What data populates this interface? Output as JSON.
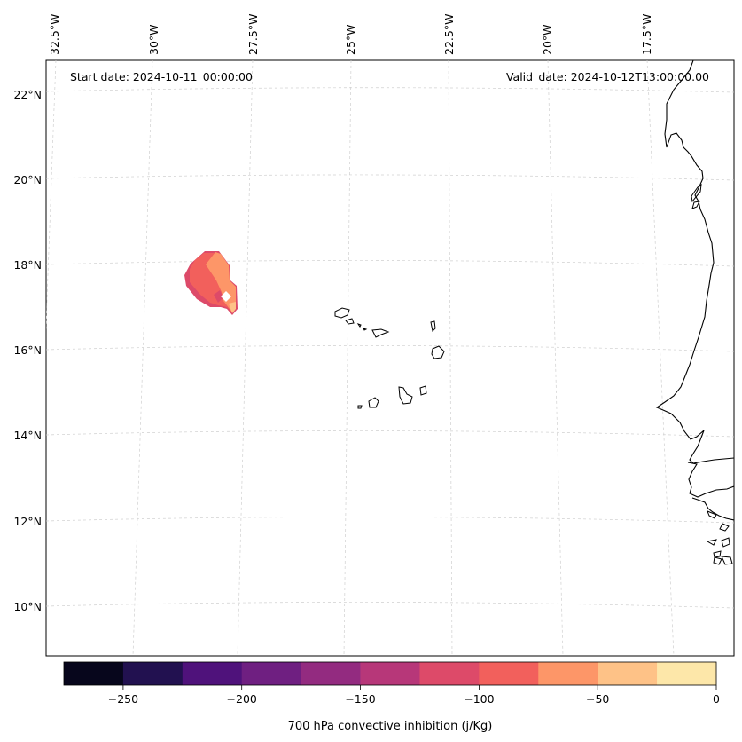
{
  "info": {
    "start_date": "Start date: 2024-10-11_00:00:00",
    "valid_date": "Valid_date: 2024-10-12T13:00:00.00"
  },
  "lon_labels": [
    "32.5°W",
    "30°W",
    "27.5°W",
    "25°W",
    "22.5°W",
    "20°W",
    "17.5°W"
  ],
  "lat_labels": [
    "22°N",
    "20°N",
    "18°N",
    "16°N",
    "14°N",
    "12°N",
    "10°N"
  ],
  "colorbar": {
    "label": "700 hPa convective inhibition (j/Kg)",
    "tick_labels": [
      "−250",
      "−200",
      "−150",
      "−100",
      "−50",
      "0"
    ],
    "bin_edges": [
      -275,
      -250,
      -225,
      -200,
      -175,
      -150,
      -125,
      -100,
      -75,
      -50,
      -25,
      0
    ],
    "colors": [
      "#07061c",
      "#221150",
      "#4f127b",
      "#6f1f81",
      "#932b80",
      "#b73779",
      "#dd4a69",
      "#f2605c",
      "#fd9668",
      "#fec287",
      "#fde7a9"
    ]
  },
  "chart_data": {
    "type": "map-filled-contour",
    "variable": "700 hPa convective inhibition",
    "units": "j/Kg",
    "lon_range": [
      -33,
      -16
    ],
    "lat_range": [
      9,
      23
    ],
    "colorbar_range": [
      -275,
      0
    ],
    "feature": {
      "center_lon": -28.9,
      "center_lat": 17.6,
      "levels_present": [
        -125,
        -100,
        -75,
        -50
      ]
    }
  }
}
